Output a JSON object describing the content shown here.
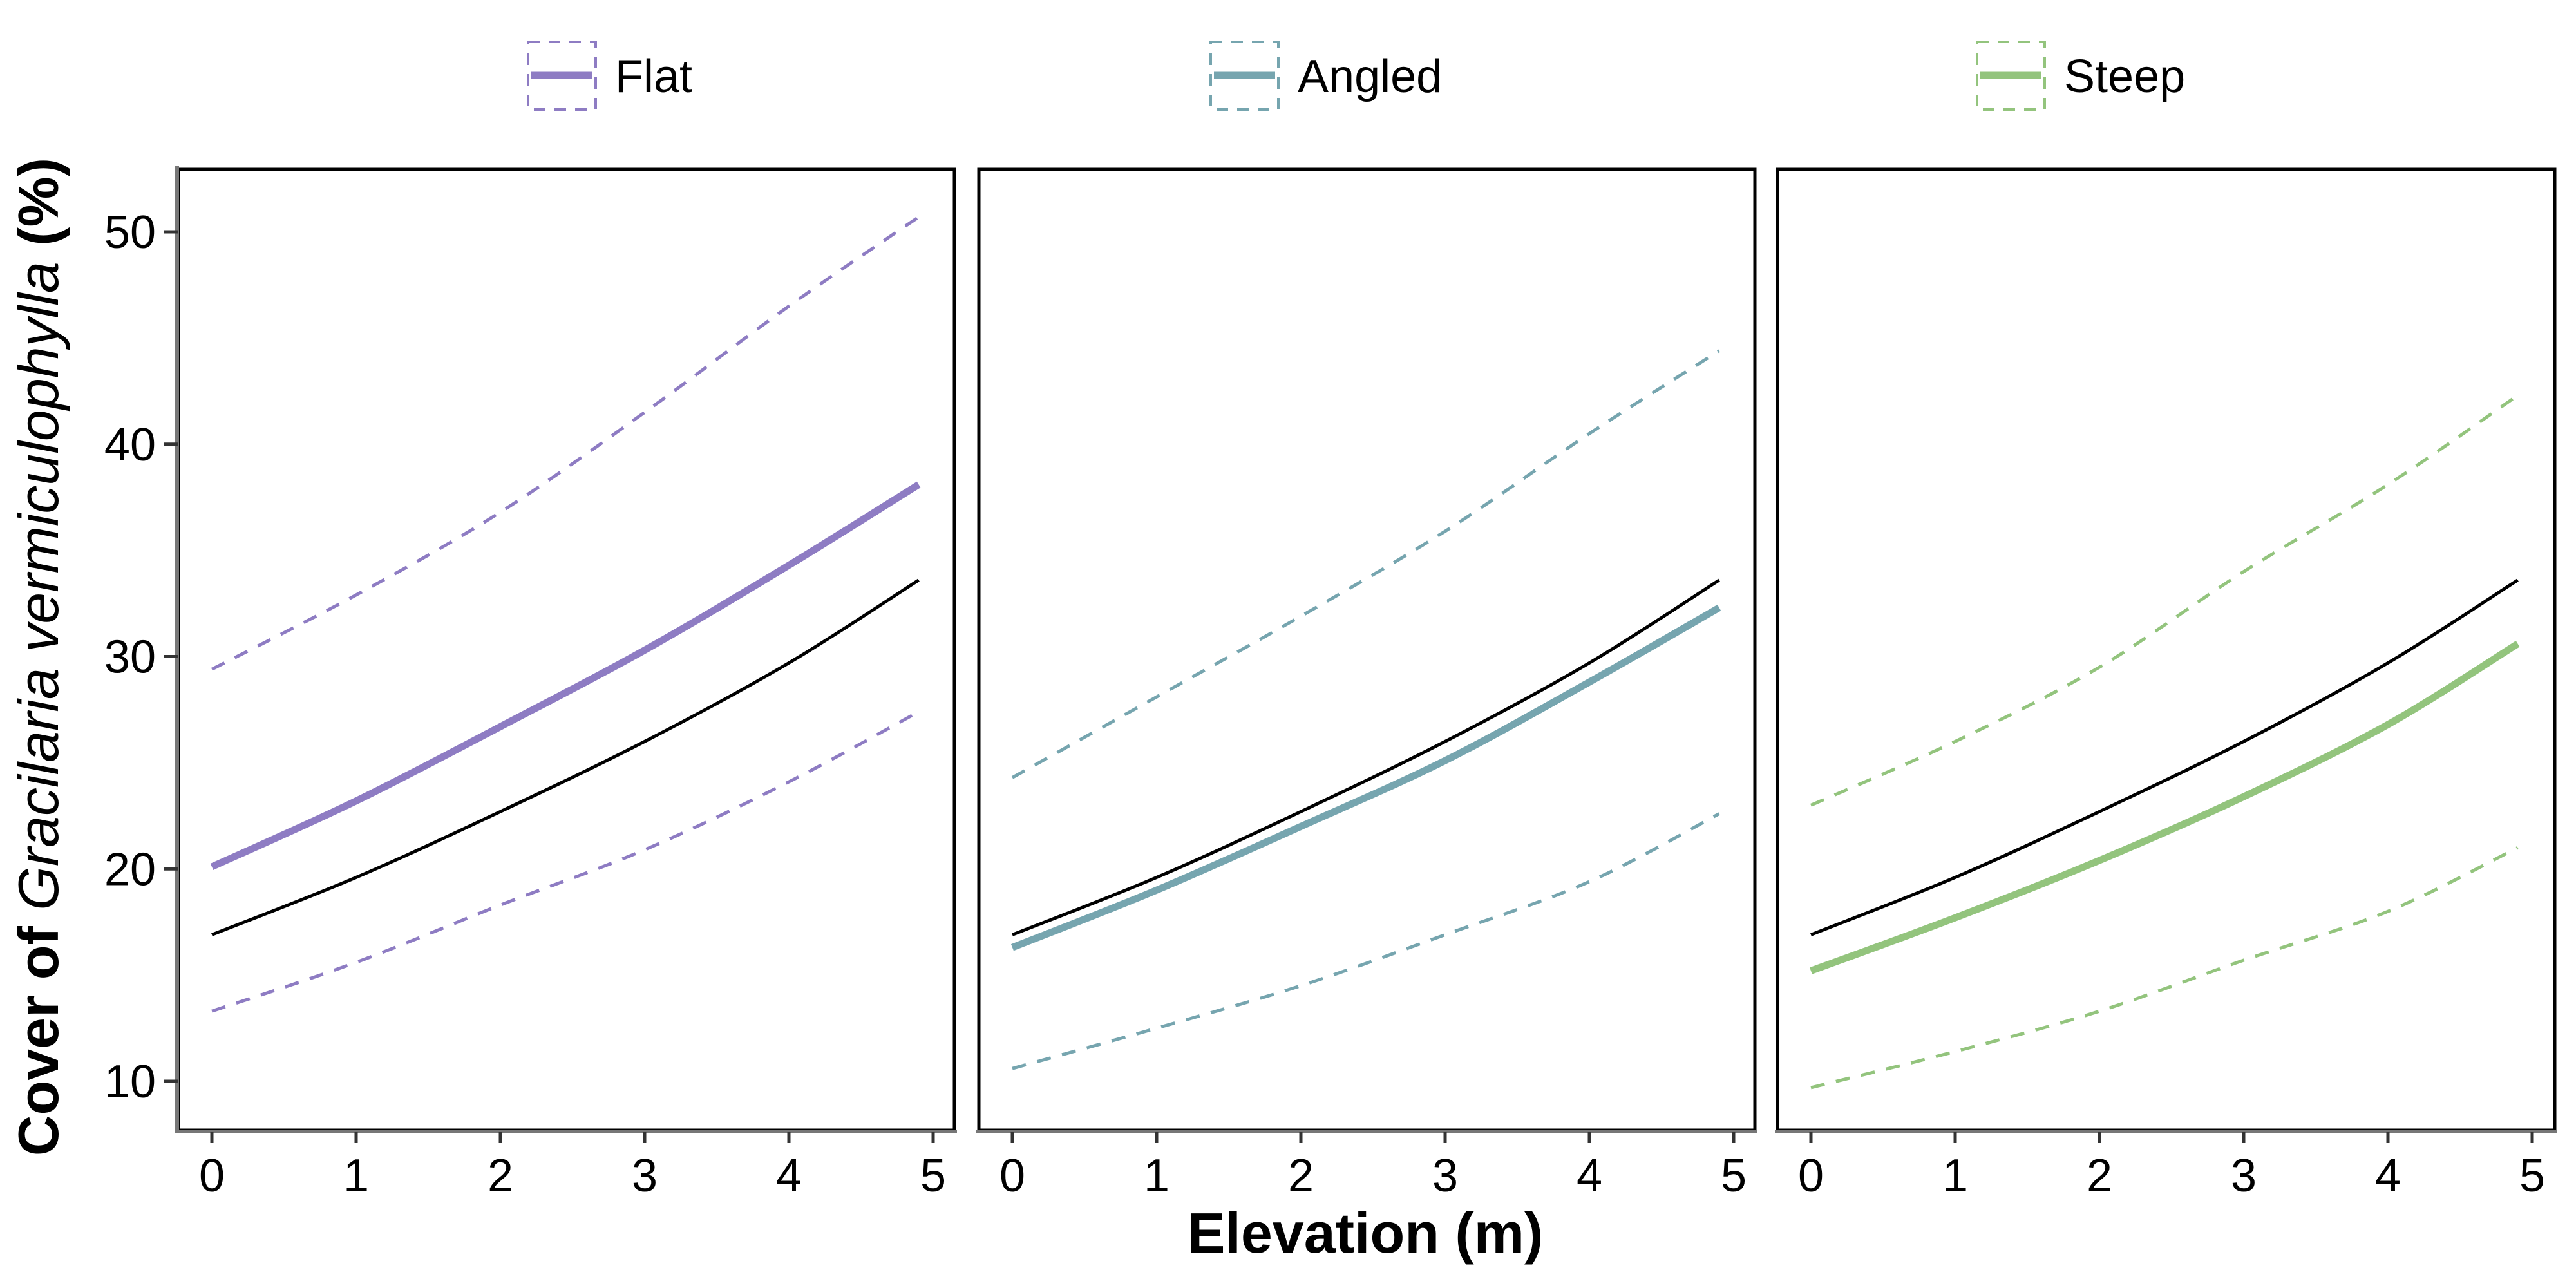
{
  "chart_data": {
    "type": "line",
    "ylabel_prefix": "Cover of ",
    "ylabel_italic": "Gracilaria vermiculophylla",
    "ylabel_suffix": " (%)",
    "xlabel": "Elevation (m)",
    "xlim": [
      -0.25,
      5.15
    ],
    "ylim": [
      7.5,
      53
    ],
    "x_ticks": [
      "0",
      "1",
      "2",
      "3",
      "4",
      "5"
    ],
    "y_ticks": [
      "10",
      "20",
      "30",
      "40",
      "50"
    ],
    "grid": false,
    "legend_position": "top",
    "x": [
      0,
      1,
      2,
      3,
      4,
      4.9
    ],
    "overall_line": {
      "color": "#000000",
      "values": [
        16.9,
        19.6,
        22.7,
        26.0,
        29.7,
        33.6
      ]
    },
    "panels": [
      {
        "name": "Flat",
        "color": "#8E7CC3",
        "fit": [
          20.1,
          23.2,
          26.7,
          30.3,
          34.3,
          38.1
        ],
        "upper": [
          29.4,
          32.9,
          36.8,
          41.5,
          46.5,
          50.7
        ],
        "lower": [
          13.3,
          15.6,
          18.3,
          20.9,
          24.1,
          27.4
        ]
      },
      {
        "name": "Angled",
        "color": "#76A5AF",
        "fit": [
          16.3,
          19.0,
          22.0,
          25.1,
          28.8,
          32.3
        ],
        "upper": [
          24.3,
          28.1,
          31.9,
          35.9,
          40.5,
          44.4
        ],
        "lower": [
          10.6,
          12.5,
          14.5,
          16.9,
          19.4,
          22.6
        ]
      },
      {
        "name": "Steep",
        "color": "#93C47D",
        "fit": [
          15.2,
          17.7,
          20.4,
          23.4,
          26.8,
          30.6
        ],
        "upper": [
          23.0,
          26.0,
          29.5,
          34.0,
          38.1,
          42.3
        ],
        "lower": [
          9.7,
          11.4,
          13.3,
          15.7,
          18.0,
          21.0
        ]
      }
    ]
  }
}
